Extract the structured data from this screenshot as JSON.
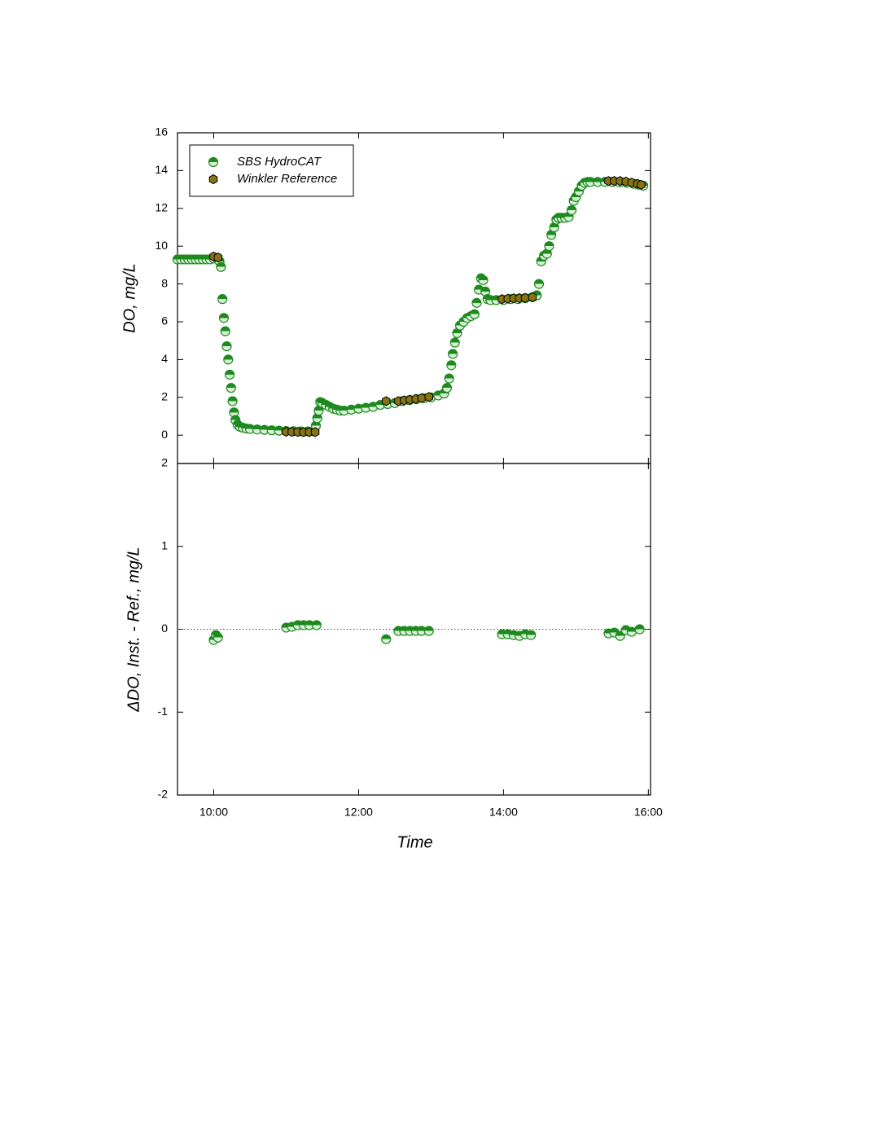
{
  "chart_data": [
    {
      "type": "scatter",
      "y_label": "DO, mg/L",
      "xlim": [
        9.5,
        16.03
      ],
      "ylim": [
        -1.5,
        16
      ],
      "yticks": [
        0,
        2,
        4,
        6,
        8,
        10,
        12,
        14,
        16
      ],
      "legend": "top-left",
      "series": [
        {
          "name": "SBS HydroCAT",
          "color": "#1e8a1e",
          "marker": "half-circle",
          "x": [
            9.5,
            9.55,
            9.6,
            9.65,
            9.7,
            9.75,
            9.8,
            9.85,
            9.9,
            9.95,
            10.0,
            10.05,
            10.08,
            10.1,
            10.12,
            10.14,
            10.16,
            10.18,
            10.2,
            10.22,
            10.24,
            10.26,
            10.28,
            10.3,
            10.33,
            10.36,
            10.4,
            10.45,
            10.5,
            10.6,
            10.7,
            10.8,
            10.9,
            11.0,
            11.1,
            11.2,
            11.3,
            11.38,
            11.41,
            11.43,
            11.45,
            11.47,
            11.5,
            11.55,
            11.6,
            11.65,
            11.7,
            11.75,
            11.8,
            11.9,
            12.0,
            12.1,
            12.2,
            12.3,
            12.4,
            12.5,
            12.6,
            12.7,
            12.8,
            12.9,
            13.0,
            13.1,
            13.18,
            13.22,
            13.25,
            13.28,
            13.3,
            13.33,
            13.36,
            13.4,
            13.45,
            13.5,
            13.55,
            13.6,
            13.63,
            13.66,
            13.69,
            13.72,
            13.75,
            13.78,
            13.82,
            13.9,
            14.0,
            14.1,
            14.2,
            14.3,
            14.4,
            14.46,
            14.49,
            14.52,
            14.56,
            14.6,
            14.63,
            14.66,
            14.7,
            14.73,
            14.76,
            14.8,
            14.85,
            14.9,
            14.94,
            14.97,
            15.0,
            15.04,
            15.08,
            15.12,
            15.16,
            15.2,
            15.3,
            15.4,
            15.5,
            15.6,
            15.7,
            15.8,
            15.87,
            15.93
          ],
          "values": [
            9.3,
            9.3,
            9.3,
            9.3,
            9.3,
            9.3,
            9.3,
            9.3,
            9.3,
            9.3,
            9.35,
            9.35,
            9.2,
            8.9,
            7.2,
            6.2,
            5.5,
            4.7,
            4.0,
            3.2,
            2.5,
            1.8,
            1.2,
            0.8,
            0.55,
            0.45,
            0.4,
            0.35,
            0.33,
            0.3,
            0.28,
            0.26,
            0.24,
            0.22,
            0.21,
            0.2,
            0.2,
            0.2,
            0.5,
            0.9,
            1.3,
            1.75,
            1.7,
            1.6,
            1.5,
            1.4,
            1.35,
            1.3,
            1.3,
            1.35,
            1.4,
            1.45,
            1.5,
            1.6,
            1.65,
            1.7,
            1.8,
            1.85,
            1.9,
            1.95,
            2.0,
            2.1,
            2.2,
            2.5,
            3.0,
            3.7,
            4.3,
            4.9,
            5.4,
            5.8,
            6.0,
            6.2,
            6.3,
            6.4,
            7.0,
            7.7,
            8.3,
            8.2,
            7.6,
            7.2,
            7.15,
            7.15,
            7.15,
            7.2,
            7.2,
            7.25,
            7.3,
            7.4,
            8.0,
            9.2,
            9.5,
            9.6,
            10.0,
            10.6,
            11.0,
            11.4,
            11.5,
            11.5,
            11.5,
            11.55,
            11.9,
            12.4,
            12.6,
            12.9,
            13.2,
            13.35,
            13.4,
            13.4,
            13.4,
            13.4,
            13.4,
            13.38,
            13.35,
            13.3,
            13.25,
            13.2
          ]
        },
        {
          "name": "Winkler Reference",
          "color": "#857414",
          "marker": "hexagon",
          "x": [
            10.0,
            10.06,
            11.0,
            11.08,
            11.16,
            11.24,
            11.32,
            11.4,
            12.38,
            12.55,
            12.63,
            12.71,
            12.79,
            12.87,
            12.97,
            13.98,
            14.06,
            14.14,
            14.22,
            14.3,
            14.4,
            15.45,
            15.53,
            15.61,
            15.69,
            15.77,
            15.85,
            15.9
          ],
          "values": [
            9.45,
            9.4,
            0.18,
            0.17,
            0.17,
            0.16,
            0.16,
            0.16,
            1.8,
            1.8,
            1.84,
            1.88,
            1.92,
            1.96,
            2.02,
            7.2,
            7.22,
            7.24,
            7.25,
            7.26,
            7.3,
            13.45,
            13.45,
            13.45,
            13.42,
            13.36,
            13.3,
            13.25
          ]
        }
      ]
    },
    {
      "type": "scatter",
      "y_label": "ΔDO, Inst. - Ref., mg/L",
      "x_label": "Time",
      "xlim": [
        9.5,
        16.03
      ],
      "ylim": [
        -2,
        2
      ],
      "yticks": [
        -2,
        -1,
        0,
        1,
        2
      ],
      "xticks": [
        {
          "value": 10,
          "label": "10:00"
        },
        {
          "value": 12,
          "label": "12:00"
        },
        {
          "value": 14,
          "label": "14:00"
        },
        {
          "value": 16,
          "label": "16:00"
        }
      ],
      "reference_line": 0,
      "series": [
        {
          "name": "SBS HydroCAT",
          "color": "#1e8a1e",
          "marker": "half-circle",
          "x": [
            10.0,
            10.03,
            10.06,
            11.0,
            11.08,
            11.16,
            11.24,
            11.32,
            11.42,
            12.38,
            12.55,
            12.63,
            12.71,
            12.79,
            12.87,
            12.97,
            13.98,
            14.06,
            14.14,
            14.22,
            14.3,
            14.38,
            15.45,
            15.53,
            15.61,
            15.69,
            15.77,
            15.88
          ],
          "values": [
            -0.13,
            -0.07,
            -0.1,
            0.02,
            0.03,
            0.05,
            0.05,
            0.05,
            0.05,
            -0.12,
            -0.02,
            -0.02,
            -0.02,
            -0.02,
            -0.02,
            -0.02,
            -0.06,
            -0.06,
            -0.07,
            -0.08,
            -0.06,
            -0.07,
            -0.05,
            -0.04,
            -0.08,
            -0.01,
            -0.03,
            0.0
          ]
        }
      ]
    }
  ]
}
